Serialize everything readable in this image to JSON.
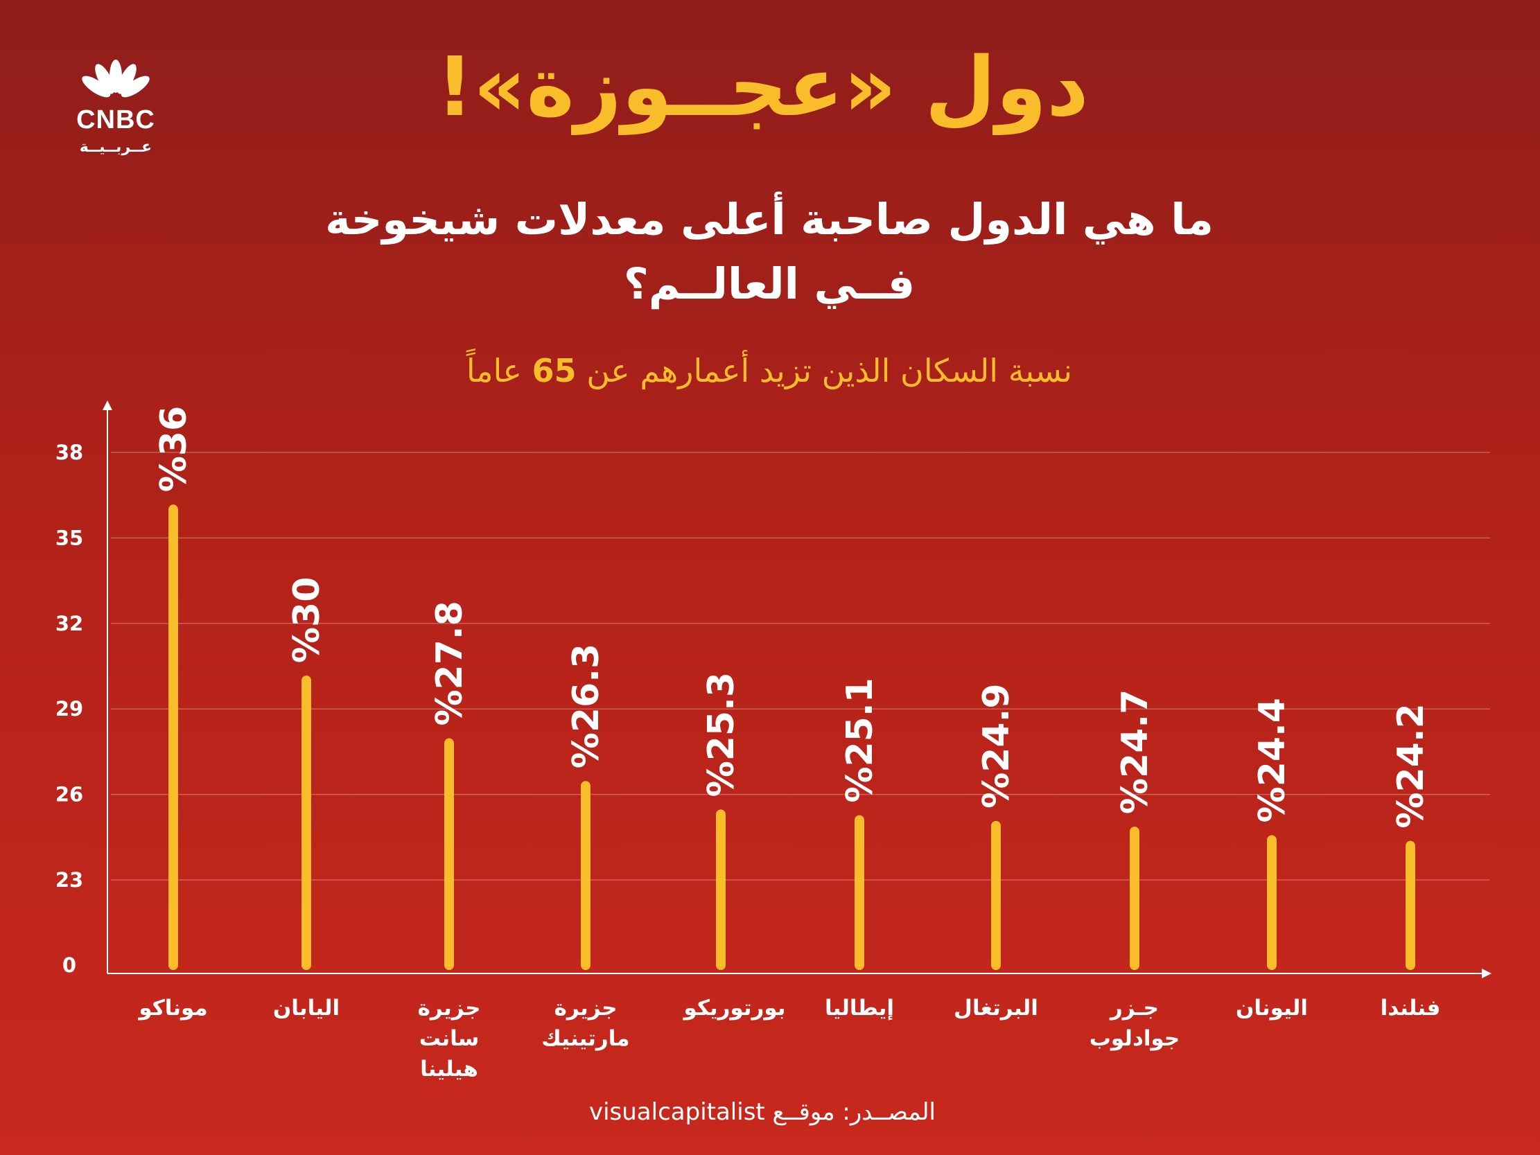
{
  "brand": {
    "name": "CNBC",
    "arabic": "عــربــيــة"
  },
  "title": "دول «عجــوزة»!",
  "subtitle_line1": "ما هي الدول صاحبة أعلى معدلات شيخوخة",
  "subtitle_line2": "فــي العالــم؟",
  "caption_before": "نسبة السكان الذين تزيد أعمارهم عن",
  "caption_number": "65",
  "caption_after": "عاماً",
  "source": "المصــدر: موقــع visualcapitalist",
  "colors": {
    "bar": "#f9bd2c",
    "background_top": "#8f1d1b",
    "background_bottom": "#c8281d",
    "title": "#f9bd2c"
  },
  "chart_data": {
    "type": "bar",
    "categories": [
      [
        "موناكو"
      ],
      [
        "اليابان"
      ],
      [
        "جزيرة",
        "سانت",
        "هيلينا"
      ],
      [
        "جزيرة",
        "مارتينيك"
      ],
      [
        "بورتوريكو"
      ],
      [
        "إيطاليا"
      ],
      [
        "البرتغال"
      ],
      [
        "جـزر",
        "جوادلوب"
      ],
      [
        "اليونان"
      ],
      [
        "فنلندا"
      ]
    ],
    "values": [
      36,
      30,
      27.8,
      26.3,
      25.3,
      25.1,
      24.9,
      24.7,
      24.4,
      24.2
    ],
    "value_labels": [
      "%36",
      "%30",
      "%27.8",
      "%26.3",
      "%25.3",
      "%25.1",
      "%24.9",
      "%24.7",
      "%24.4",
      "%24.2"
    ],
    "yticks": [
      0,
      23,
      26,
      29,
      32,
      35,
      38
    ],
    "grid": true,
    "ylabel": "",
    "xlabel": ""
  }
}
